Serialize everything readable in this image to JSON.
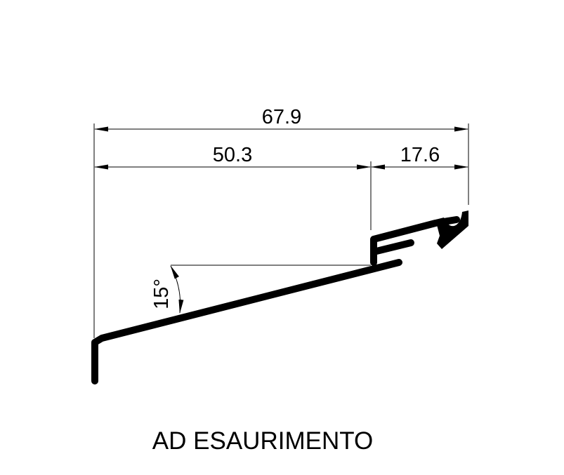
{
  "drawing": {
    "caption": "AD ESAURIMENTO",
    "dimensions": {
      "overall": "67.9",
      "left_segment": "50.3",
      "right_segment": "17.6",
      "angle": "15°"
    },
    "colors": {
      "line": "#000000",
      "background": "#ffffff"
    }
  }
}
